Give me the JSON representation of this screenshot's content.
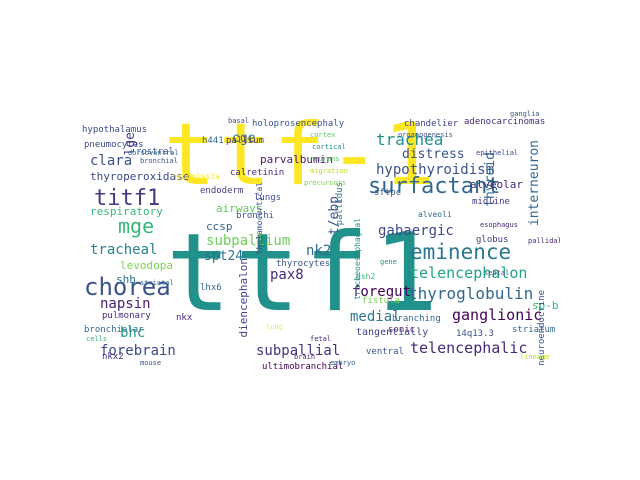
{
  "words": [
    {
      "text": "ttf-1",
      "color": "#fde725"
    },
    {
      "text": "ttf1",
      "color": "#21918c"
    },
    {
      "text": "surfactant",
      "color": "#31688e"
    },
    {
      "text": "chorea",
      "color": "#3b528b"
    },
    {
      "text": "eminence",
      "color": "#2a788e"
    },
    {
      "text": "titf1",
      "color": "#443983"
    },
    {
      "text": "mge",
      "color": "#35b779"
    },
    {
      "text": "trachea",
      "color": "#21918c"
    },
    {
      "text": "hypothyroidism",
      "color": "#3b528b"
    },
    {
      "text": "telencephalon",
      "color": "#20a486"
    },
    {
      "text": "thyroglobulin",
      "color": "#31688e"
    },
    {
      "text": "telencephalic",
      "color": "#482878"
    },
    {
      "text": "ganglionic",
      "color": "#440154"
    },
    {
      "text": "forebrain",
      "color": "#3e4989"
    },
    {
      "text": "subpallial",
      "color": "#46337e"
    },
    {
      "text": "subpallium",
      "color": "#6ece58"
    },
    {
      "text": "tracheal",
      "color": "#26828e"
    },
    {
      "text": "napsin",
      "color": "#482173"
    },
    {
      "text": "foregut",
      "color": "#440154"
    },
    {
      "text": "gabaergic",
      "color": "#3e4989"
    },
    {
      "text": "interneuron",
      "color": "#31688e"
    },
    {
      "text": "thyroid",
      "color": "#31688e"
    },
    {
      "text": "distress",
      "color": "#3b528b"
    },
    {
      "text": "clara",
      "color": "#3b528b"
    },
    {
      "text": "spt24",
      "color": "#2c728e"
    },
    {
      "text": "nk2",
      "color": "#31688e"
    },
    {
      "text": "pax8",
      "color": "#472d7b"
    },
    {
      "text": "medial",
      "color": "#2a788e"
    },
    {
      "text": "bhc",
      "color": "#1f9e89"
    },
    {
      "text": "respiratory",
      "color": "#35b779"
    },
    {
      "text": "thyroperoxidase",
      "color": "#3e4989"
    },
    {
      "text": "t/ebp",
      "color": "#3b528b"
    },
    {
      "text": "alveolar",
      "color": "#482878"
    },
    {
      "text": "cge",
      "color": "#2c728e"
    },
    {
      "text": "lge",
      "color": "#443983"
    },
    {
      "text": "parvalbumin",
      "color": "#481a6c"
    },
    {
      "text": "airways",
      "color": "#5ec962"
    },
    {
      "text": "levodopa",
      "color": "#7ad151"
    },
    {
      "text": "shh",
      "color": "#2c728e"
    },
    {
      "text": "tangentially",
      "color": "#404688"
    },
    {
      "text": "diencephalon",
      "color": "#414487"
    },
    {
      "text": "ccsp",
      "color": "#31688e"
    },
    {
      "text": "hypothalamus",
      "color": "#3e4989"
    },
    {
      "text": "holoprosencephaly",
      "color": "#3b528b"
    },
    {
      "text": "chandelier",
      "color": "#414487"
    },
    {
      "text": "adenocarcinomas",
      "color": "#472d7b"
    },
    {
      "text": "pneumocytes",
      "color": "#3e4989"
    },
    {
      "text": "pallium",
      "color": "#46337e"
    },
    {
      "text": "rostral",
      "color": "#3b528b"
    },
    {
      "text": "calretinin",
      "color": "#482878"
    },
    {
      "text": "endoderm",
      "color": "#443983"
    },
    {
      "text": "lungs",
      "color": "#3e4989"
    },
    {
      "text": "sftpc",
      "color": "#3b528b"
    },
    {
      "text": "midline",
      "color": "#443983"
    },
    {
      "text": "globus",
      "color": "#433e85"
    },
    {
      "text": "pallidus",
      "color": "#2a788e"
    },
    {
      "text": "thyrocytes",
      "color": "#3b528b"
    },
    {
      "text": "pulmonary",
      "color": "#482878"
    },
    {
      "text": "lhx6",
      "color": "#31688e"
    },
    {
      "text": "bronchi",
      "color": "#3b528b"
    },
    {
      "text": "bronchiolar",
      "color": "#31688e"
    },
    {
      "text": "nkx2",
      "color": "#482878"
    },
    {
      "text": "fistula",
      "color": "#7ad151"
    },
    {
      "text": "sonic",
      "color": "#482878"
    },
    {
      "text": "branching",
      "color": "#31688e"
    },
    {
      "text": "14q13.3",
      "color": "#3b528b"
    },
    {
      "text": "striatum",
      "color": "#31688e"
    },
    {
      "text": "ventral",
      "color": "#3b528b"
    },
    {
      "text": "ultimobranchial",
      "color": "#440154"
    },
    {
      "text": "sp-b",
      "color": "#35b779"
    },
    {
      "text": "neuroendocrine",
      "color": "#3b528b"
    },
    {
      "text": "nkx",
      "color": "#482878"
    },
    {
      "text": "gsh2",
      "color": "#35b779"
    },
    {
      "text": "hypoplasia",
      "color": "#fde725"
    },
    {
      "text": "alveoli",
      "color": "#31688e"
    },
    {
      "text": "thalamocortical",
      "color": "#3e4989"
    },
    {
      "text": "tracheoesophageal",
      "color": "#21918c"
    },
    {
      "text": "organogenesis",
      "color": "#3b528b"
    },
    {
      "text": "pallidal",
      "color": "#482878"
    },
    {
      "text": "h441",
      "color": "#31688e"
    },
    {
      "text": "precursors",
      "color": "#7ad151"
    },
    {
      "text": "ganglia",
      "color": "#3b528b"
    },
    {
      "text": "migration",
      "color": "#b5de2b"
    },
    {
      "text": "neurons",
      "color": "#5ec962"
    },
    {
      "text": "striatal",
      "color": "#31688e"
    },
    {
      "text": "cortical",
      "color": "#21918c"
    },
    {
      "text": "bronchial",
      "color": "#3b528b"
    },
    {
      "text": "esophagus",
      "color": "#482878"
    },
    {
      "text": "epithelial",
      "color": "#3e4989"
    },
    {
      "text": "dorsoventral",
      "color": "#31688e"
    },
    {
      "text": "lineage",
      "color": "#b5de2b"
    },
    {
      "text": "septal",
      "color": "#3b528b"
    },
    {
      "text": "brain",
      "color": "#482878"
    },
    {
      "text": "gene",
      "color": "#21918c"
    },
    {
      "text": "cells",
      "color": "#35b779"
    },
    {
      "text": "mouse",
      "color": "#3b528b"
    },
    {
      "text": "embryo",
      "color": "#31688e"
    },
    {
      "text": "fetal",
      "color": "#482878"
    },
    {
      "text": "lung",
      "color": "#fde725"
    },
    {
      "text": "basal",
      "color": "#3e4989"
    },
    {
      "text": "cortex",
      "color": "#5ec962"
    }
  ]
}
